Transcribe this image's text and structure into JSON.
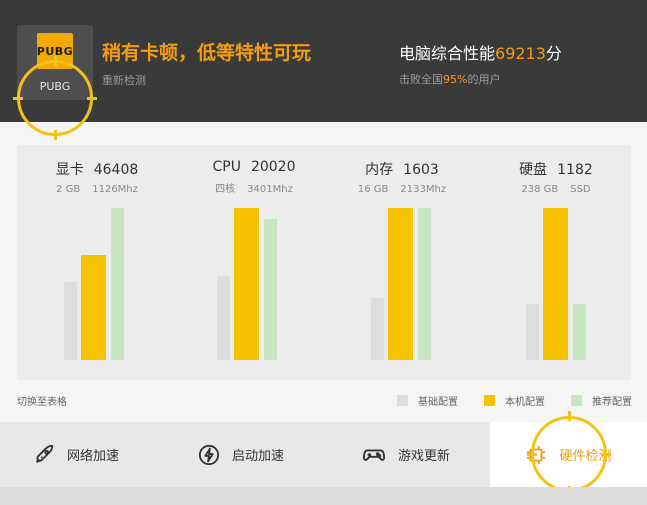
{
  "header": {
    "game_logo_text": "PUBG",
    "game_name": "PUBG",
    "status_title": "稍有卡顿，低等特性可玩",
    "recheck_label": "重新检测",
    "score_prefix": "电脑综合性能",
    "score_value": "69213",
    "score_suffix": "分",
    "rank_prefix": "击败全国",
    "rank_value": "95%",
    "rank_suffix": "的用户"
  },
  "metrics": [
    {
      "name": "显卡",
      "value": "46408",
      "spec1": "2 GB",
      "spec2": "1126Mhz"
    },
    {
      "name": "CPU",
      "value": "20020",
      "spec1": "四核",
      "spec2": "3401Mhz"
    },
    {
      "name": "内存",
      "value": "1603",
      "spec1": "16 GB",
      "spec2": "2133Mhz"
    },
    {
      "name": "硬盘",
      "value": "1182",
      "spec1": "238 GB",
      "spec2": "SSD"
    }
  ],
  "chart_data": {
    "type": "bar",
    "categories": [
      "显卡",
      "CPU",
      "内存",
      "硬盘"
    ],
    "series": [
      {
        "name": "基础配置",
        "values": [
          0.51,
          0.55,
          0.41,
          0.37
        ]
      },
      {
        "name": "本机配置",
        "values": [
          0.69,
          1.0,
          1.0,
          1.0
        ]
      },
      {
        "name": "推荐配置",
        "values": [
          1.0,
          0.93,
          1.0,
          0.37
        ]
      }
    ],
    "colors": [
      "#dddddd",
      "#f7c300",
      "#c7e5c0"
    ],
    "legend_position": "bottom-right",
    "grid": false
  },
  "switch_label": "切换至表格",
  "legend": [
    {
      "label": "基础配置",
      "color": "#dddddd"
    },
    {
      "label": "本机配置",
      "color": "#f7c300"
    },
    {
      "label": "推荐配置",
      "color": "#c7e5c0"
    }
  ],
  "nav": [
    {
      "label": "网络加速",
      "icon": "rocket-icon"
    },
    {
      "label": "启动加速",
      "icon": "lightning-icon"
    },
    {
      "label": "游戏更新",
      "icon": "gamepad-icon"
    },
    {
      "label": "硬件检测",
      "icon": "chip-icon",
      "active": true
    }
  ],
  "colors": {
    "accent": "#f39c12",
    "header_bg": "#3a3a3a",
    "highlight_ring": "#f2c21b"
  }
}
